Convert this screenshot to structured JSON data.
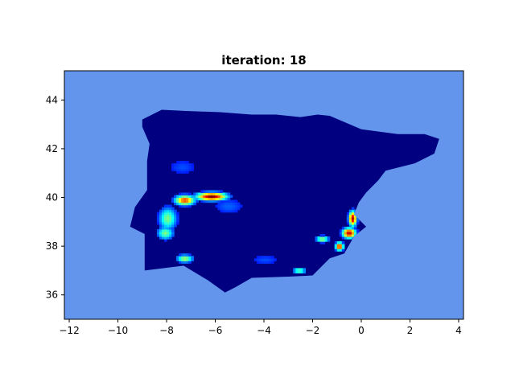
{
  "figure": {
    "title": "iteration: 18"
  },
  "colors": {
    "sea": "#6495ed",
    "land_base": "#000080",
    "hot": "#a00000"
  },
  "chart_data": {
    "type": "heatmap",
    "title": "iteration: 18",
    "xlabel": "",
    "ylabel": "",
    "xlim": [
      -12.2,
      4.2
    ],
    "ylim": [
      35.0,
      45.2
    ],
    "xticks": [
      -12,
      -10,
      -8,
      -6,
      -4,
      -2,
      0,
      2,
      4
    ],
    "yticks": [
      36,
      38,
      40,
      42,
      44
    ],
    "xtick_labels": [
      "−12",
      "−10",
      "−8",
      "−6",
      "−4",
      "−2",
      "0",
      "2",
      "4"
    ],
    "ytick_labels": [
      "36",
      "38",
      "40",
      "42",
      "44"
    ],
    "colormap": "jet",
    "land_outline": [
      [
        -9.0,
        43.2
      ],
      [
        -8.2,
        43.6
      ],
      [
        -7.2,
        43.55
      ],
      [
        -5.8,
        43.5
      ],
      [
        -4.5,
        43.4
      ],
      [
        -3.5,
        43.4
      ],
      [
        -2.5,
        43.3
      ],
      [
        -1.8,
        43.4
      ],
      [
        -1.3,
        43.35
      ],
      [
        0.0,
        42.8
      ],
      [
        1.5,
        42.6
      ],
      [
        2.6,
        42.6
      ],
      [
        3.2,
        42.4
      ],
      [
        3.0,
        41.8
      ],
      [
        2.2,
        41.4
      ],
      [
        1.0,
        41.1
      ],
      [
        0.7,
        40.7
      ],
      [
        0.2,
        40.2
      ],
      [
        -0.1,
        39.8
      ],
      [
        -0.3,
        39.3
      ],
      [
        0.2,
        38.8
      ],
      [
        -0.3,
        38.4
      ],
      [
        -0.7,
        37.7
      ],
      [
        -1.3,
        37.5
      ],
      [
        -2.0,
        36.8
      ],
      [
        -3.0,
        36.75
      ],
      [
        -4.5,
        36.7
      ],
      [
        -5.2,
        36.3
      ],
      [
        -5.6,
        36.1
      ],
      [
        -6.3,
        36.6
      ],
      [
        -7.3,
        37.2
      ],
      [
        -8.9,
        37.0
      ],
      [
        -8.9,
        38.5
      ],
      [
        -9.5,
        38.8
      ],
      [
        -9.3,
        39.6
      ],
      [
        -8.8,
        40.3
      ],
      [
        -8.8,
        41.5
      ],
      [
        -8.7,
        42.2
      ],
      [
        -9.0,
        42.9
      ]
    ],
    "hotspots": [
      {
        "x": -6.2,
        "y": 40.0,
        "sx": 0.45,
        "sy": 0.12,
        "peak": 1.0
      },
      {
        "x": -7.3,
        "y": 39.85,
        "sx": 0.3,
        "sy": 0.15,
        "peak": 0.82
      },
      {
        "x": -8.0,
        "y": 39.1,
        "sx": 0.28,
        "sy": 0.35,
        "peak": 0.5
      },
      {
        "x": -8.1,
        "y": 38.5,
        "sx": 0.25,
        "sy": 0.2,
        "peak": 0.5
      },
      {
        "x": -7.3,
        "y": 37.45,
        "sx": 0.25,
        "sy": 0.12,
        "peak": 0.55
      },
      {
        "x": -0.4,
        "y": 39.1,
        "sx": 0.12,
        "sy": 0.22,
        "peak": 0.95
      },
      {
        "x": -0.55,
        "y": 38.5,
        "sx": 0.2,
        "sy": 0.15,
        "peak": 0.95
      },
      {
        "x": -0.95,
        "y": 37.95,
        "sx": 0.12,
        "sy": 0.12,
        "peak": 0.9
      },
      {
        "x": -1.65,
        "y": 38.25,
        "sx": 0.2,
        "sy": 0.1,
        "peak": 0.55
      },
      {
        "x": -2.6,
        "y": 36.95,
        "sx": 0.2,
        "sy": 0.06,
        "peak": 0.6
      },
      {
        "x": -5.5,
        "y": 39.6,
        "sx": 0.6,
        "sy": 0.3,
        "peak": 0.22
      },
      {
        "x": -7.4,
        "y": 41.2,
        "sx": 0.6,
        "sy": 0.3,
        "peak": 0.2
      },
      {
        "x": -4.0,
        "y": 37.4,
        "sx": 0.6,
        "sy": 0.2,
        "peak": 0.2
      }
    ]
  }
}
